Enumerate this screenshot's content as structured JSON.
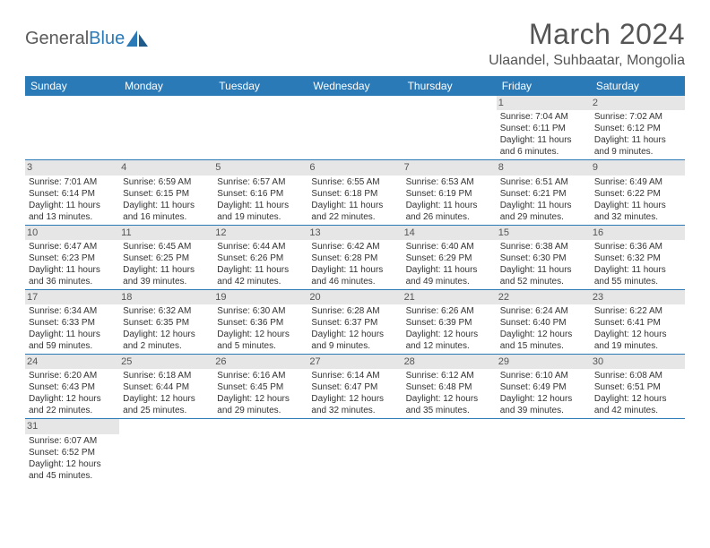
{
  "brand": {
    "name_gray": "General",
    "name_blue": "Blue"
  },
  "title": "March 2024",
  "location": "Ulaandel, Suhbaatar, Mongolia",
  "colors": {
    "header_bg": "#2a7ab8",
    "header_text": "#ffffff",
    "daynum_bg": "#e6e6e6",
    "row_border": "#2a7ab8",
    "body_text": "#333333",
    "title_text": "#555555"
  },
  "weekdays": [
    "Sunday",
    "Monday",
    "Tuesday",
    "Wednesday",
    "Thursday",
    "Friday",
    "Saturday"
  ],
  "weeks": [
    [
      null,
      null,
      null,
      null,
      null,
      {
        "d": "1",
        "sr": "Sunrise: 7:04 AM",
        "ss": "Sunset: 6:11 PM",
        "dl1": "Daylight: 11 hours",
        "dl2": "and 6 minutes."
      },
      {
        "d": "2",
        "sr": "Sunrise: 7:02 AM",
        "ss": "Sunset: 6:12 PM",
        "dl1": "Daylight: 11 hours",
        "dl2": "and 9 minutes."
      }
    ],
    [
      {
        "d": "3",
        "sr": "Sunrise: 7:01 AM",
        "ss": "Sunset: 6:14 PM",
        "dl1": "Daylight: 11 hours",
        "dl2": "and 13 minutes."
      },
      {
        "d": "4",
        "sr": "Sunrise: 6:59 AM",
        "ss": "Sunset: 6:15 PM",
        "dl1": "Daylight: 11 hours",
        "dl2": "and 16 minutes."
      },
      {
        "d": "5",
        "sr": "Sunrise: 6:57 AM",
        "ss": "Sunset: 6:16 PM",
        "dl1": "Daylight: 11 hours",
        "dl2": "and 19 minutes."
      },
      {
        "d": "6",
        "sr": "Sunrise: 6:55 AM",
        "ss": "Sunset: 6:18 PM",
        "dl1": "Daylight: 11 hours",
        "dl2": "and 22 minutes."
      },
      {
        "d": "7",
        "sr": "Sunrise: 6:53 AM",
        "ss": "Sunset: 6:19 PM",
        "dl1": "Daylight: 11 hours",
        "dl2": "and 26 minutes."
      },
      {
        "d": "8",
        "sr": "Sunrise: 6:51 AM",
        "ss": "Sunset: 6:21 PM",
        "dl1": "Daylight: 11 hours",
        "dl2": "and 29 minutes."
      },
      {
        "d": "9",
        "sr": "Sunrise: 6:49 AM",
        "ss": "Sunset: 6:22 PM",
        "dl1": "Daylight: 11 hours",
        "dl2": "and 32 minutes."
      }
    ],
    [
      {
        "d": "10",
        "sr": "Sunrise: 6:47 AM",
        "ss": "Sunset: 6:23 PM",
        "dl1": "Daylight: 11 hours",
        "dl2": "and 36 minutes."
      },
      {
        "d": "11",
        "sr": "Sunrise: 6:45 AM",
        "ss": "Sunset: 6:25 PM",
        "dl1": "Daylight: 11 hours",
        "dl2": "and 39 minutes."
      },
      {
        "d": "12",
        "sr": "Sunrise: 6:44 AM",
        "ss": "Sunset: 6:26 PM",
        "dl1": "Daylight: 11 hours",
        "dl2": "and 42 minutes."
      },
      {
        "d": "13",
        "sr": "Sunrise: 6:42 AM",
        "ss": "Sunset: 6:28 PM",
        "dl1": "Daylight: 11 hours",
        "dl2": "and 46 minutes."
      },
      {
        "d": "14",
        "sr": "Sunrise: 6:40 AM",
        "ss": "Sunset: 6:29 PM",
        "dl1": "Daylight: 11 hours",
        "dl2": "and 49 minutes."
      },
      {
        "d": "15",
        "sr": "Sunrise: 6:38 AM",
        "ss": "Sunset: 6:30 PM",
        "dl1": "Daylight: 11 hours",
        "dl2": "and 52 minutes."
      },
      {
        "d": "16",
        "sr": "Sunrise: 6:36 AM",
        "ss": "Sunset: 6:32 PM",
        "dl1": "Daylight: 11 hours",
        "dl2": "and 55 minutes."
      }
    ],
    [
      {
        "d": "17",
        "sr": "Sunrise: 6:34 AM",
        "ss": "Sunset: 6:33 PM",
        "dl1": "Daylight: 11 hours",
        "dl2": "and 59 minutes."
      },
      {
        "d": "18",
        "sr": "Sunrise: 6:32 AM",
        "ss": "Sunset: 6:35 PM",
        "dl1": "Daylight: 12 hours",
        "dl2": "and 2 minutes."
      },
      {
        "d": "19",
        "sr": "Sunrise: 6:30 AM",
        "ss": "Sunset: 6:36 PM",
        "dl1": "Daylight: 12 hours",
        "dl2": "and 5 minutes."
      },
      {
        "d": "20",
        "sr": "Sunrise: 6:28 AM",
        "ss": "Sunset: 6:37 PM",
        "dl1": "Daylight: 12 hours",
        "dl2": "and 9 minutes."
      },
      {
        "d": "21",
        "sr": "Sunrise: 6:26 AM",
        "ss": "Sunset: 6:39 PM",
        "dl1": "Daylight: 12 hours",
        "dl2": "and 12 minutes."
      },
      {
        "d": "22",
        "sr": "Sunrise: 6:24 AM",
        "ss": "Sunset: 6:40 PM",
        "dl1": "Daylight: 12 hours",
        "dl2": "and 15 minutes."
      },
      {
        "d": "23",
        "sr": "Sunrise: 6:22 AM",
        "ss": "Sunset: 6:41 PM",
        "dl1": "Daylight: 12 hours",
        "dl2": "and 19 minutes."
      }
    ],
    [
      {
        "d": "24",
        "sr": "Sunrise: 6:20 AM",
        "ss": "Sunset: 6:43 PM",
        "dl1": "Daylight: 12 hours",
        "dl2": "and 22 minutes."
      },
      {
        "d": "25",
        "sr": "Sunrise: 6:18 AM",
        "ss": "Sunset: 6:44 PM",
        "dl1": "Daylight: 12 hours",
        "dl2": "and 25 minutes."
      },
      {
        "d": "26",
        "sr": "Sunrise: 6:16 AM",
        "ss": "Sunset: 6:45 PM",
        "dl1": "Daylight: 12 hours",
        "dl2": "and 29 minutes."
      },
      {
        "d": "27",
        "sr": "Sunrise: 6:14 AM",
        "ss": "Sunset: 6:47 PM",
        "dl1": "Daylight: 12 hours",
        "dl2": "and 32 minutes."
      },
      {
        "d": "28",
        "sr": "Sunrise: 6:12 AM",
        "ss": "Sunset: 6:48 PM",
        "dl1": "Daylight: 12 hours",
        "dl2": "and 35 minutes."
      },
      {
        "d": "29",
        "sr": "Sunrise: 6:10 AM",
        "ss": "Sunset: 6:49 PM",
        "dl1": "Daylight: 12 hours",
        "dl2": "and 39 minutes."
      },
      {
        "d": "30",
        "sr": "Sunrise: 6:08 AM",
        "ss": "Sunset: 6:51 PM",
        "dl1": "Daylight: 12 hours",
        "dl2": "and 42 minutes."
      }
    ],
    [
      {
        "d": "31",
        "sr": "Sunrise: 6:07 AM",
        "ss": "Sunset: 6:52 PM",
        "dl1": "Daylight: 12 hours",
        "dl2": "and 45 minutes."
      },
      null,
      null,
      null,
      null,
      null,
      null
    ]
  ]
}
